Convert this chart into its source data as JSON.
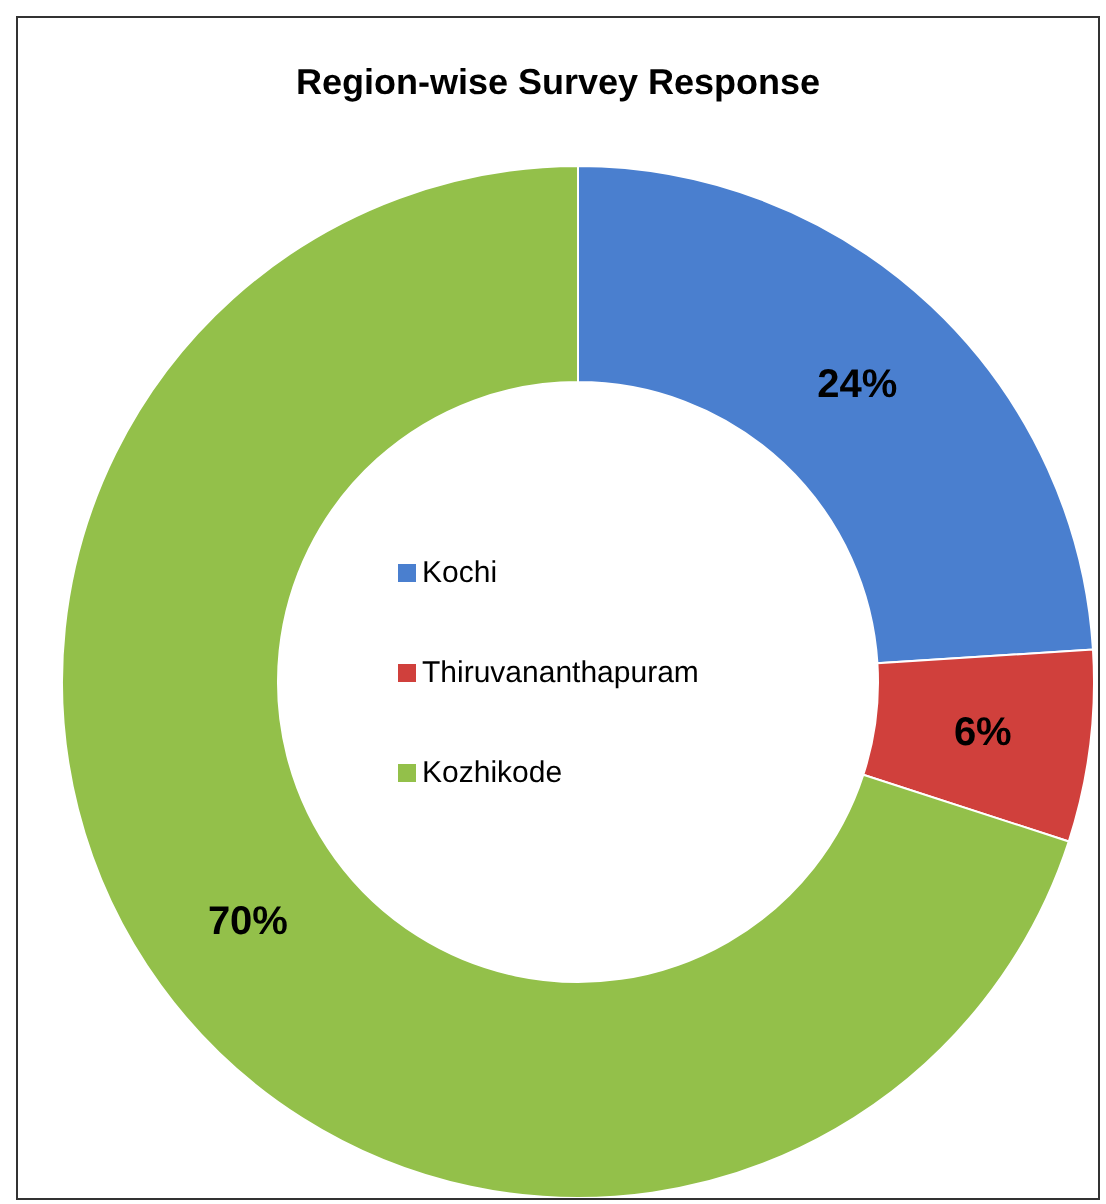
{
  "chart_data": {
    "type": "donut",
    "title": "Region-wise Survey Response",
    "categories": [
      "Kochi",
      "Thiruvananthapuram",
      "Kozhikode"
    ],
    "values": [
      24,
      6,
      70
    ],
    "colors": [
      "#4a7fcf",
      "#d0403c",
      "#93c04a"
    ],
    "value_labels": [
      "24%",
      "6%",
      "70%"
    ],
    "legend": "center"
  }
}
